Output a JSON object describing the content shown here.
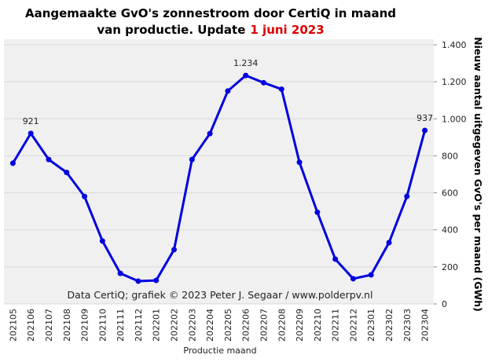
{
  "chart_data": {
    "type": "line",
    "title": [
      "Aangemaakte GvO's zonnestroom door CertiQ in maand",
      "van productie. Update"
    ],
    "title_date": "1 juni 2023",
    "annotation": "Data CertiQ; grafiek © 2023 Peter J. Segaar / www.polderpv.nl",
    "xlabel": "Productie maand",
    "ylabel": "Nieuw aantal uitgegeven GvO's per maand (GWh)",
    "categories": [
      "202105",
      "202106",
      "202107",
      "202108",
      "202109",
      "202110",
      "202111",
      "202112",
      "202201",
      "202202",
      "202203",
      "202204",
      "202205",
      "202206",
      "202207",
      "202208",
      "202209",
      "202210",
      "202211",
      "202212",
      "202301",
      "202302",
      "202303",
      "202304"
    ],
    "series": [
      {
        "name": "GvO's",
        "color": "#0000e0",
        "values": [
          760,
          921,
          780,
          710,
          580,
          340,
          165,
          123,
          127,
          293,
          780,
          920,
          1150,
          1234,
          1195,
          1160,
          765,
          495,
          242,
          136,
          157,
          331,
          581,
          937
        ],
        "value_labels": [
          null,
          "921",
          null,
          null,
          null,
          null,
          null,
          null,
          null,
          null,
          null,
          null,
          null,
          "1.234",
          null,
          null,
          null,
          null,
          null,
          null,
          null,
          null,
          null,
          "937"
        ]
      }
    ],
    "ylim": [
      0,
      1400
    ],
    "yticks": [
      0,
      200,
      400,
      600,
      800,
      {
        "value": 1000,
        "label": "1.000"
      },
      {
        "value": 1200,
        "label": "1.200"
      },
      {
        "value": 1400,
        "label": "1.400"
      }
    ],
    "grid": true
  }
}
